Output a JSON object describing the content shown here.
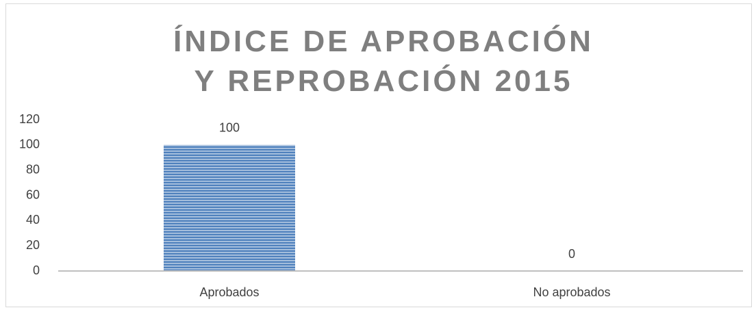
{
  "chart_data": {
    "type": "bar",
    "title": "ÍNDICE DE APROBACIÓN Y REPROBACIÓN 2015",
    "categories": [
      "Aprobados",
      "No aprobados"
    ],
    "values": [
      100,
      0
    ],
    "color": "#4f81bd",
    "ylim": [
      0,
      120
    ],
    "yticks": [
      0,
      20,
      40,
      60,
      80,
      100,
      120
    ],
    "grid": false
  }
}
